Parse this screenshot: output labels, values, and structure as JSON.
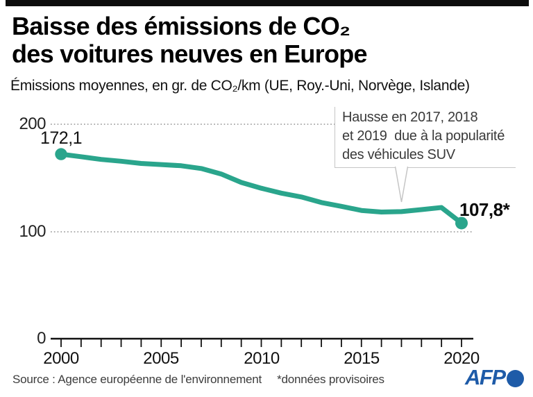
{
  "header": {
    "title_line1": "Baisse des émissions de CO₂",
    "title_line2": "des voitures neuves en Europe",
    "subtitle": "Émissions moyennes, en gr. de CO₂/km (UE, Roy.-Uni, Norvège, Islande)"
  },
  "chart_data": {
    "type": "line",
    "title": "Baisse des émissions de CO₂ des voitures neuves en Europe",
    "ylabel": "Émissions moyennes, en gr. de CO₂/km",
    "x": [
      2000,
      2001,
      2002,
      2003,
      2004,
      2005,
      2006,
      2007,
      2008,
      2009,
      2010,
      2011,
      2012,
      2013,
      2014,
      2015,
      2016,
      2017,
      2018,
      2019,
      2020
    ],
    "values": [
      172.1,
      169.7,
      167.2,
      165.5,
      163.4,
      162.4,
      161.3,
      158.7,
      153.6,
      145.7,
      140.3,
      135.7,
      132.2,
      127.0,
      123.4,
      119.6,
      118.1,
      118.5,
      120.4,
      122.3,
      107.8
    ],
    "ylim": [
      0,
      200
    ],
    "y_ticks": [
      200,
      100,
      0
    ],
    "x_tick_labels": [
      2000,
      2005,
      2010,
      2015,
      2020
    ],
    "start_label": "172,1",
    "end_label": "107,8*",
    "line_color": "#2aa58c",
    "grid": "dotted horizontal at 100 and 200",
    "legend": "none"
  },
  "annotation": {
    "lines": [
      "Hausse en 2017, 2018",
      "et 2019  due à la popularité",
      "des véhicules SUV"
    ]
  },
  "footer": {
    "source": "Source : Agence européenne de l'environnement",
    "note": "*données provisoires",
    "logo": "AFP",
    "logo_color": "#1e5ba8"
  }
}
